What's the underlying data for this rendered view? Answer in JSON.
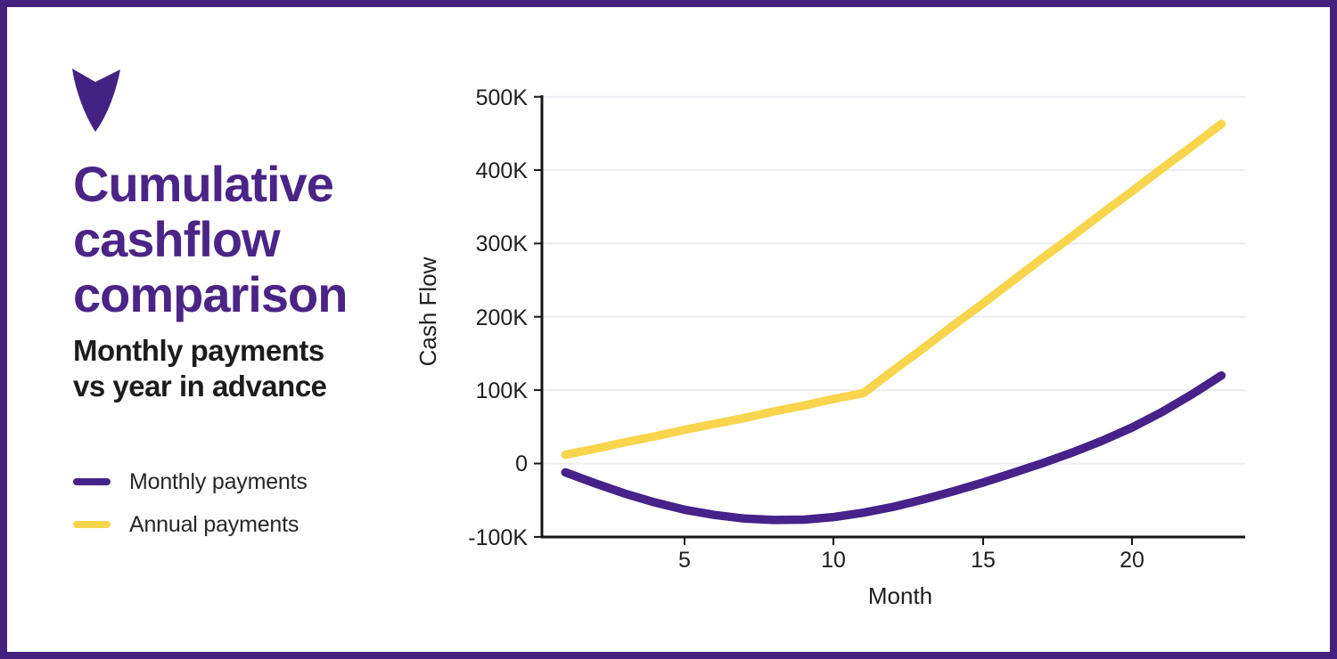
{
  "panel": {
    "title_lines": [
      "Cumulative",
      "cashflow",
      "comparison"
    ],
    "subtitle_lines": [
      "Monthly payments",
      "vs year in advance"
    ],
    "legend": [
      {
        "label": "Monthly payments",
        "color": "#46228a"
      },
      {
        "label": "Annual payments",
        "color": "#f9d44d"
      }
    ],
    "logo_icon": "down-arrow"
  },
  "colors": {
    "brand_purple": "#46228a",
    "accent_yellow": "#f9d44d",
    "frame_purple": "#44207f",
    "text_dark": "#1e1e1e",
    "gridline": "#ececf2"
  },
  "chart_data": {
    "type": "line",
    "title": "",
    "xlabel": "Month",
    "ylabel": "Cash Flow",
    "grid": true,
    "legend_position": "left",
    "xlim": [
      1,
      23
    ],
    "ylim": [
      -100000,
      500000
    ],
    "x_ticks": [
      5,
      10,
      15,
      20
    ],
    "x_tick_labels": [
      "5",
      "10",
      "15",
      "20"
    ],
    "y_ticks_k": [
      500,
      400,
      300,
      200,
      100,
      0,
      -100
    ],
    "y_tick_labels": [
      "500K",
      "400K",
      "300K",
      "200K",
      "100K",
      "0",
      "-100K"
    ],
    "months": [
      1,
      2,
      3,
      4,
      5,
      6,
      7,
      8,
      9,
      10,
      11,
      12,
      13,
      14,
      15,
      16,
      17,
      18,
      19,
      20,
      21,
      22,
      23
    ],
    "series": [
      {
        "name": "Monthly payments",
        "color": "#46228a",
        "values_k": [
          -12,
          -27,
          -41,
          -53,
          -63,
          -70,
          -75,
          -77,
          -76.5,
          -73,
          -67,
          -59,
          -49,
          -38,
          -26,
          -13,
          0.5,
          15,
          31,
          49,
          70,
          94,
          120
        ]
      },
      {
        "name": "Annual payments",
        "color": "#f9d44d",
        "values_k": [
          12,
          20,
          29,
          37,
          46,
          54,
          62,
          71,
          79,
          88,
          96,
          127,
          157,
          188,
          218,
          249,
          280,
          310,
          341,
          371,
          402,
          432,
          463
        ]
      }
    ]
  }
}
